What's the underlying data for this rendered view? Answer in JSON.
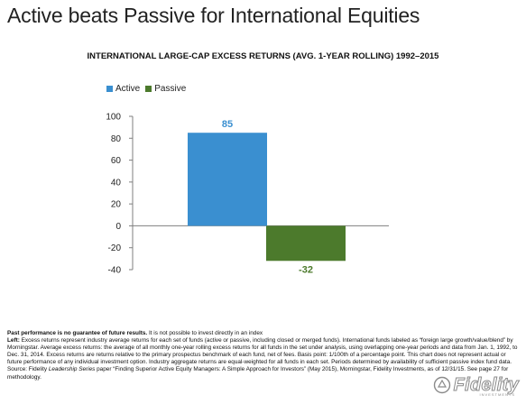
{
  "slide_title": "Active beats Passive for International Equities",
  "chart_data": {
    "type": "bar",
    "title": "INTERNATIONAL LARGE-CAP EXCESS RETURNS (AVG. 1-YEAR ROLLING) 1992–2015",
    "categories": [
      "Active",
      "Passive"
    ],
    "series": [
      {
        "name": "Active",
        "values": [
          85,
          null
        ],
        "color": "#3a8fd0"
      },
      {
        "name": "Passive",
        "values": [
          null,
          -32
        ],
        "color": "#4c7a2c"
      }
    ],
    "data_labels": [
      "85",
      "-32"
    ],
    "y_ticks": [
      "100",
      "80",
      "60",
      "40",
      "20",
      "0",
      "-20",
      "-40"
    ],
    "ylim": [
      -40,
      100
    ],
    "xlabel": "",
    "ylabel": "",
    "grid": false,
    "legend_position": "top-left"
  },
  "legend": {
    "items": [
      {
        "label": "Active",
        "color": "#3a8fd0"
      },
      {
        "label": "Passive",
        "color": "#4c7a2c"
      }
    ]
  },
  "footnote": {
    "line1_bold": "Past performance is no guarantee of future results.",
    "line1_rest": " It is not possible to invest directly in an index",
    "left_bold": "Left:",
    "left_part1": " Excess returns represent industry average returns for each set of funds (active or passive, including closed or merged funds). International funds labeled as “foreign large growth/value/blend” by Morningstar. Average excess returns: the average of all monthly one-year rolling excess returns for all funds in the set under analysis, using overlapping one-year periods and data from Jan. 1, 1992, to Dec. 31, 2014. Excess returns are returns relative to the primary prospectus benchmark of each fund, net of fees. Basis point: 1/100th of a percentage point. This chart does not represent actual or future performance of any individual investment option. Industry aggregate returns are equal-weighted for all funds in each set. Periods determined by availability of sufficient passive index fund data. Source: Fidelity ",
    "left_italic": "Leadership Series",
    "left_part2": " paper “Finding Superior Active Equity Managers: A Simple Approach for Investors” (May 2015), Morningstar, Fidelity Investments, as of 12/31/15. See page 27 for methodology."
  },
  "logo": {
    "text": "Fidelity",
    "sub": "INVESTMENTS"
  },
  "colors": {
    "active": "#3a8fd0",
    "passive": "#4c7a2c",
    "axis": "#7f7f7f"
  }
}
